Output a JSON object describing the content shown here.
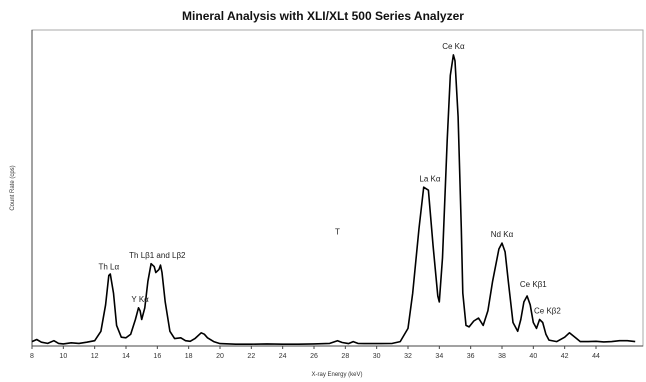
{
  "chart_data": {
    "type": "line",
    "title": "Mineral Analysis with XLI/XLt 500 Series Analyzer",
    "xlabel": "X-ray Energy (keV)",
    "ylabel": "Count Rate (cps)",
    "xlim": [
      8,
      47
    ],
    "ylim": [
      0,
      100
    ],
    "x_ticks": [
      8,
      10,
      12,
      14,
      16,
      18,
      20,
      22,
      24,
      26,
      28,
      30,
      32,
      34,
      36,
      38,
      40,
      42,
      44
    ],
    "grid": false,
    "legend": "none",
    "line_color": "#000000",
    "series": [
      {
        "x": [
          8.0,
          8.3,
          8.6,
          9.0,
          9.4,
          9.7,
          10.0,
          10.5,
          11.0,
          11.5,
          12.0,
          12.4,
          12.7,
          12.9,
          13.0,
          13.2,
          13.4,
          13.7,
          14.0,
          14.3,
          14.6,
          14.8,
          14.9,
          15.0,
          15.2,
          15.4,
          15.6,
          15.8,
          15.9,
          16.1,
          16.2,
          16.3,
          16.5,
          16.8,
          17.1,
          17.5,
          17.8,
          18.1,
          18.4,
          18.8,
          19.0,
          19.2,
          19.6,
          20.0,
          21.0,
          22.0,
          23.0,
          24.0,
          25.0,
          26.0,
          27.0,
          27.5,
          27.8,
          28.2,
          28.5,
          28.8,
          29.2,
          30.0,
          31.0,
          31.5,
          32.0,
          32.3,
          32.7,
          33.0,
          33.3,
          33.6,
          33.9,
          34.0,
          34.2,
          34.5,
          34.7,
          34.9,
          35.0,
          35.2,
          35.4,
          35.5,
          35.7,
          35.9,
          36.2,
          36.5,
          36.8,
          37.1,
          37.4,
          37.8,
          38.0,
          38.2,
          38.4,
          38.7,
          39.0,
          39.2,
          39.4,
          39.6,
          39.8,
          40.0,
          40.2,
          40.4,
          40.6,
          40.8,
          41.0,
          41.5,
          42.0,
          42.3,
          42.7,
          43.0,
          43.5,
          44.0,
          44.5,
          45.0,
          45.5,
          46.0,
          46.5
        ],
        "y": [
          1.5,
          2.2,
          1.3,
          0.9,
          1.8,
          0.9,
          0.7,
          1.1,
          0.9,
          1.3,
          1.8,
          5.0,
          14.0,
          24.0,
          24.5,
          18.0,
          7.0,
          3.0,
          2.8,
          4.0,
          9.0,
          13.0,
          12.0,
          9.0,
          13.0,
          22.0,
          28.0,
          27.0,
          25.0,
          26.0,
          27.5,
          25.0,
          15.0,
          5.0,
          2.5,
          2.8,
          1.8,
          1.6,
          2.5,
          4.5,
          4.0,
          2.8,
          1.5,
          0.8,
          0.6,
          0.6,
          0.7,
          0.6,
          0.6,
          0.7,
          0.9,
          1.8,
          1.2,
          0.8,
          1.5,
          0.9,
          0.8,
          0.8,
          0.9,
          1.5,
          6.0,
          18.0,
          40.0,
          54.0,
          53.0,
          34.0,
          17.0,
          15.0,
          30.0,
          70.0,
          92.0,
          99.0,
          97.0,
          78.0,
          40.0,
          18.0,
          7.0,
          6.5,
          8.5,
          9.5,
          7.0,
          12.0,
          22.0,
          33.0,
          35.0,
          32.0,
          22.0,
          8.0,
          5.0,
          9.0,
          15.0,
          17.0,
          14.0,
          8.0,
          6.0,
          9.0,
          8.0,
          4.0,
          2.0,
          1.5,
          3.0,
          4.5,
          2.8,
          1.5,
          1.5,
          1.6,
          1.4,
          1.5,
          1.8,
          1.8,
          1.5
        ]
      }
    ],
    "annotations": [
      {
        "text": "Th Lα",
        "x": 12.9,
        "y": 26
      },
      {
        "text": "Y Kα",
        "x": 14.9,
        "y": 15
      },
      {
        "text": "Th Lβ1 and Lβ2",
        "x": 16.0,
        "y": 30
      },
      {
        "text": "T",
        "x": 27.5,
        "y": 38
      },
      {
        "text": "La Kα",
        "x": 33.4,
        "y": 56
      },
      {
        "text": "Ce Kα",
        "x": 34.9,
        "y": 101
      },
      {
        "text": "Nd Kα",
        "x": 38.0,
        "y": 37
      },
      {
        "text": "Ce Kβ1",
        "x": 40.0,
        "y": 20
      },
      {
        "text": "Ce Kβ2",
        "x": 40.9,
        "y": 11
      }
    ]
  }
}
